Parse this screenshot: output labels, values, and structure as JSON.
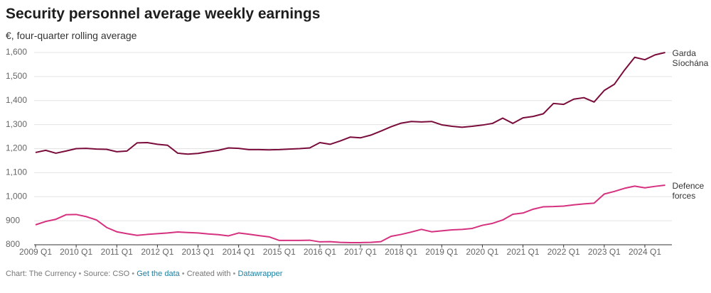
{
  "chart_data": {
    "type": "line",
    "title": "Security personnel average weekly earnings",
    "subtitle": "€, four-quarter rolling average",
    "categories": [
      "2009 Q1",
      null,
      null,
      null,
      "2010 Q1",
      null,
      null,
      null,
      "2011 Q1",
      null,
      null,
      null,
      "2012 Q1",
      null,
      null,
      null,
      "2013 Q1",
      null,
      null,
      null,
      "2014 Q1",
      null,
      null,
      null,
      "2015 Q1",
      null,
      null,
      null,
      "2016 Q1",
      null,
      null,
      null,
      "2017 Q1",
      null,
      null,
      null,
      "2018 Q1",
      null,
      null,
      null,
      "2019 Q1",
      null,
      null,
      null,
      "2020 Q1",
      null,
      null,
      null,
      "2021 Q1",
      null,
      null,
      null,
      "2022 Q1",
      null,
      null,
      null,
      "2023 Q1",
      null,
      null,
      null,
      "2024 Q1",
      null,
      null
    ],
    "series": [
      {
        "name": "Garda Síochána",
        "color": "#7a0c3b",
        "values": [
          1184,
          1193,
          1181,
          1190,
          1200,
          1201,
          1198,
          1197,
          1187,
          1190,
          1224,
          1225,
          1218,
          1214,
          1181,
          1177,
          1180,
          1187,
          1193,
          1203,
          1201,
          1196,
          1196,
          1195,
          1196,
          1198,
          1200,
          1203,
          1225,
          1218,
          1232,
          1248,
          1245,
          1256,
          1273,
          1291,
          1306,
          1313,
          1311,
          1313,
          1299,
          1293,
          1289,
          1293,
          1298,
          1305,
          1327,
          1305,
          1328,
          1334,
          1345,
          1388,
          1384,
          1406,
          1412,
          1394,
          1442,
          1468,
          1527,
          1580,
          1570,
          1590,
          1600
        ]
      },
      {
        "name": "Defence forces",
        "color": "#d6317f",
        "values": [
          883,
          897,
          906,
          925,
          926,
          917,
          903,
          872,
          854,
          846,
          839,
          843,
          846,
          849,
          853,
          851,
          849,
          845,
          842,
          837,
          849,
          844,
          838,
          833,
          818,
          818,
          818,
          819,
          812,
          813,
          810,
          809,
          809,
          810,
          813,
          835,
          843,
          853,
          864,
          854,
          858,
          862,
          864,
          868,
          881,
          889,
          903,
          927,
          932,
          948,
          958,
          959,
          961,
          966,
          970,
          973,
          1011,
          1022,
          1035,
          1044,
          1037,
          1043,
          1048
        ]
      }
    ],
    "ylim": [
      800,
      1600
    ],
    "yticks": [
      800,
      900,
      {
        "value": 1000,
        "label": "1,000"
      },
      {
        "value": 1100,
        "label": "1,100"
      },
      {
        "value": 1200,
        "label": "1,200"
      },
      {
        "value": 1300,
        "label": "1,300"
      },
      {
        "value": 1400,
        "label": "1,400"
      },
      {
        "value": 1500,
        "label": "1,500"
      },
      {
        "value": 1600,
        "label": "1,600"
      }
    ],
    "grid": true
  },
  "footer": {
    "credit": "Chart: The Currency",
    "source": "Source: CSO",
    "get_data": "Get the data",
    "created_with": "Created with",
    "tool": "Datawrapper"
  }
}
